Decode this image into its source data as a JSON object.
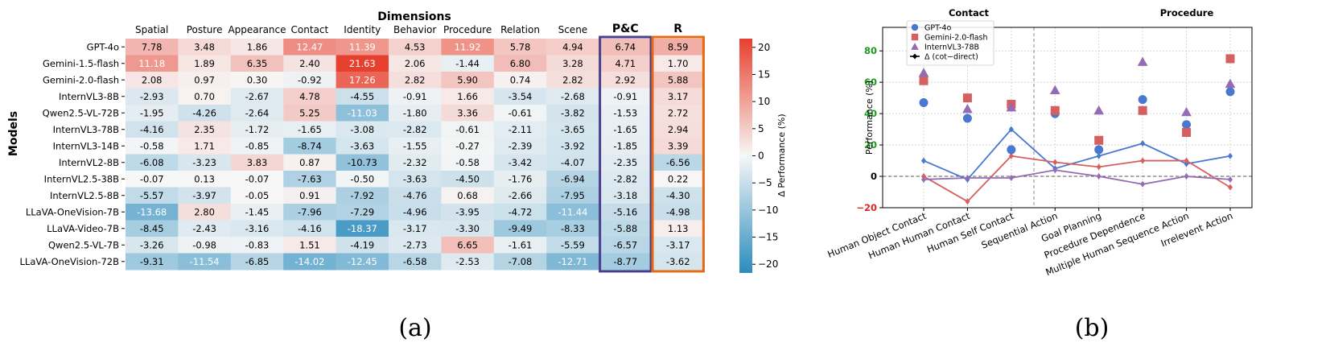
{
  "panel_a_label": "(a)",
  "panel_b_label": "(b)",
  "chart_data": [
    {
      "type": "heatmap",
      "title": "Dimensions",
      "ylabel": "Models",
      "colorbar_label": "Δ Performance (%)",
      "colorbar_ticks": [
        "20",
        "15",
        "10",
        "5",
        "0",
        "−5",
        "−10",
        "−15",
        "−20"
      ],
      "colorbar_range": [
        -21.6,
        21.6
      ],
      "colors": {
        "negative": "#2b8cbe",
        "mid": "#f7f7f7",
        "positive": "#e8402e",
        "pc_box": "#4a3f8c",
        "r_box": "#e46b14"
      },
      "columns": [
        "Spatial",
        "Posture",
        "Appearance",
        "Contact",
        "Identity",
        "Behavior",
        "Procedure",
        "Relation",
        "Scene",
        "P&C",
        "R"
      ],
      "highlight_columns": [
        "P&C",
        "R"
      ],
      "rows": [
        "GPT-4o",
        "Gemini-1.5-flash",
        "Gemini-2.0-flash",
        "InternVL3-8B",
        "Qwen2.5-VL-72B",
        "InternVL3-78B",
        "InternVL3-14B",
        "InternVL2-8B",
        "InternVL2.5-38B",
        "InternVL2.5-8B",
        "LLaVA-OneVision-7B",
        "LLaVA-Video-7B",
        "Qwen2.5-VL-7B",
        "LLaVA-OneVision-72B"
      ],
      "values": [
        [
          "7.78",
          "3.48",
          "1.86",
          "12.47",
          "11.39",
          "4.53",
          "11.92",
          "5.78",
          "4.94",
          "6.74",
          "8.59"
        ],
        [
          "11.18",
          "1.89",
          "6.35",
          "2.40",
          "21.63",
          "2.06",
          "-1.44",
          "6.80",
          "3.28",
          "4.71",
          "1.70"
        ],
        [
          "2.08",
          "0.97",
          "0.30",
          "-0.92",
          "17.26",
          "2.82",
          "5.90",
          "0.74",
          "2.82",
          "2.92",
          "5.88"
        ],
        [
          "-2.93",
          "0.70",
          "-2.67",
          "4.78",
          "-4.55",
          "-0.91",
          "1.66",
          "-3.54",
          "-2.68",
          "-0.91",
          "3.17"
        ],
        [
          "-1.95",
          "-4.26",
          "-2.64",
          "5.25",
          "-11.03",
          "-1.80",
          "3.36",
          "-0.61",
          "-3.82",
          "-1.53",
          "2.72"
        ],
        [
          "-4.16",
          "2.35",
          "-1.72",
          "-1.65",
          "-3.08",
          "-2.82",
          "-0.61",
          "-2.11",
          "-3.65",
          "-1.65",
          "2.94"
        ],
        [
          "-0.58",
          "1.71",
          "-0.85",
          "-8.74",
          "-3.63",
          "-1.55",
          "-0.27",
          "-2.39",
          "-3.92",
          "-1.85",
          "3.39"
        ],
        [
          "-6.08",
          "-3.23",
          "3.83",
          "0.87",
          "-10.73",
          "-2.32",
          "-0.58",
          "-3.42",
          "-4.07",
          "-2.35",
          "-6.56"
        ],
        [
          "-0.07",
          "0.13",
          "-0.07",
          "-7.63",
          "-0.50",
          "-3.63",
          "-4.50",
          "-1.76",
          "-6.94",
          "-2.82",
          "0.22"
        ],
        [
          "-5.57",
          "-3.97",
          "-0.05",
          "0.91",
          "-7.92",
          "-4.76",
          "0.68",
          "-2.66",
          "-7.95",
          "-3.18",
          "-4.30"
        ],
        [
          "-13.68",
          "2.80",
          "-1.45",
          "-7.96",
          "-7.29",
          "-4.96",
          "-3.95",
          "-4.72",
          "-11.44",
          "-5.16",
          "-4.98"
        ],
        [
          "-8.45",
          "-2.43",
          "-3.16",
          "-4.16",
          "-18.37",
          "-3.17",
          "-3.30",
          "-9.49",
          "-8.33",
          "-5.88",
          "1.13"
        ],
        [
          "-3.26",
          "-0.98",
          "-0.83",
          "1.51",
          "-4.19",
          "-2.73",
          "6.65",
          "-1.61",
          "-5.59",
          "-6.57",
          "-3.17"
        ],
        [
          "-9.31",
          "-11.54",
          "-6.85",
          "-14.02",
          "-12.45",
          "-6.58",
          "-2.53",
          "-7.08",
          "-12.71",
          "-8.77",
          "-3.62"
        ]
      ]
    },
    {
      "type": "scatter",
      "ylabel": "Performance (%)",
      "ylim": [
        -20,
        95
      ],
      "yticks": [
        "−20",
        "0",
        "20",
        "40",
        "60",
        "80"
      ],
      "ytick_colors": [
        "#e02424",
        "#000000",
        "#1a9a1a",
        "#1a9a1a",
        "#1a9a1a",
        "#1a9a1a"
      ],
      "group_labels": [
        "Contact",
        "Procedure"
      ],
      "categories": [
        "Human Object Contact",
        "Human Human Contact",
        "Human Self Contact",
        "Sequential Action",
        "Goal Planning",
        "Procedure Dependence",
        "Multiple Human Sequence Action",
        "Irrelevent Action"
      ],
      "grid": true,
      "legend": "top-left",
      "series": [
        {
          "name": "GPT-4o",
          "marker": "circle",
          "color": "#4878cf",
          "values": [
            47,
            37,
            17,
            40,
            17,
            49,
            33,
            54
          ],
          "delta": [
            10,
            -2,
            30,
            5,
            13,
            21,
            8,
            13
          ]
        },
        {
          "name": "Gemini-2.0-flash",
          "marker": "square",
          "color": "#d65f5f",
          "values": [
            61,
            50,
            46,
            42,
            23,
            42,
            28,
            75
          ],
          "delta": [
            0,
            -16,
            13,
            9,
            6,
            10,
            10,
            -7
          ]
        },
        {
          "name": "InternVL3-78B",
          "marker": "triangle",
          "color": "#956cb4",
          "values": [
            66,
            43,
            44,
            55,
            42,
            73,
            41,
            59
          ],
          "delta": [
            -2,
            -1,
            -1,
            4,
            0,
            -5,
            0,
            -2
          ]
        }
      ],
      "delta_legend_label": "Δ (cot−direct)"
    }
  ]
}
